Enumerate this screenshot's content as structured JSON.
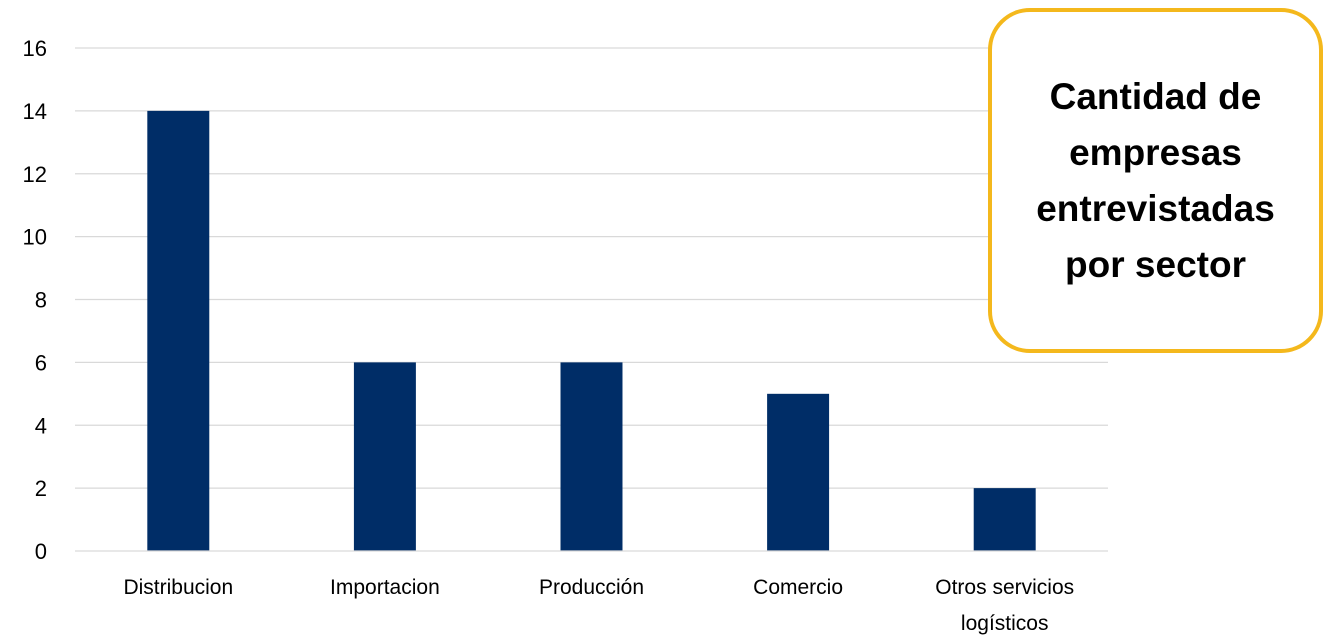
{
  "chart_data": {
    "type": "bar",
    "title": "Cantidad de empresas entrevistadas por sector",
    "categories": [
      "Distribucion",
      "Importacion",
      "Producción",
      "Comercio",
      "Otros servicios logísticos"
    ],
    "category_lines": [
      [
        "Distribucion"
      ],
      [
        "Importacion"
      ],
      [
        "Producción"
      ],
      [
        "Comercio"
      ],
      [
        "Otros servicios",
        "logísticos"
      ]
    ],
    "values": [
      14,
      6,
      6,
      5,
      2
    ],
    "ylim": [
      0,
      16
    ],
    "yticks": [
      "0",
      "2",
      "4",
      "6",
      "8",
      "10",
      "12",
      "14",
      "16"
    ],
    "xlabel": "",
    "ylabel": "",
    "grid": true,
    "legend": "none",
    "bar_color": "#002d67",
    "title_border_color": "#f4b81c"
  }
}
